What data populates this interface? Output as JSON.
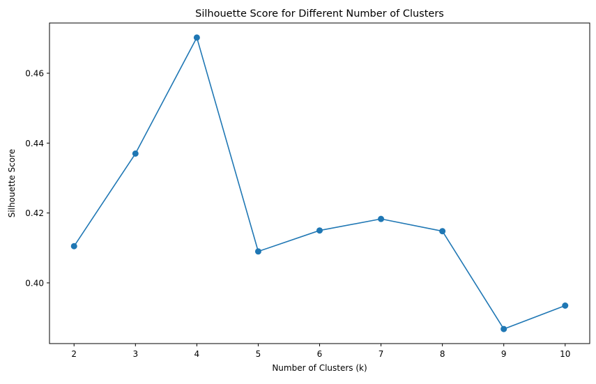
{
  "chart_data": {
    "type": "line",
    "title": "Silhouette Score for Different Number of Clusters",
    "xlabel": "Number of Clusters (k)",
    "ylabel": "Silhouette Score",
    "x": [
      2,
      3,
      4,
      5,
      6,
      7,
      8,
      9,
      10
    ],
    "series": [
      {
        "values": [
          0.4105,
          0.437,
          0.4702,
          0.409,
          0.415,
          0.4183,
          0.4148,
          0.3868,
          0.3935
        ],
        "color": "#1f77b4",
        "marker": "circle"
      }
    ],
    "xticks": [
      "2",
      "3",
      "4",
      "5",
      "6",
      "7",
      "8",
      "9",
      "10"
    ],
    "yticks": [
      0.4,
      0.42,
      0.44,
      0.46
    ],
    "ytick_labels": [
      "0.40",
      "0.42",
      "0.44",
      "0.46"
    ],
    "xlim": [
      1.6,
      10.4
    ],
    "ylim": [
      0.38263,
      0.47437
    ],
    "grid": false,
    "legend": "none"
  }
}
